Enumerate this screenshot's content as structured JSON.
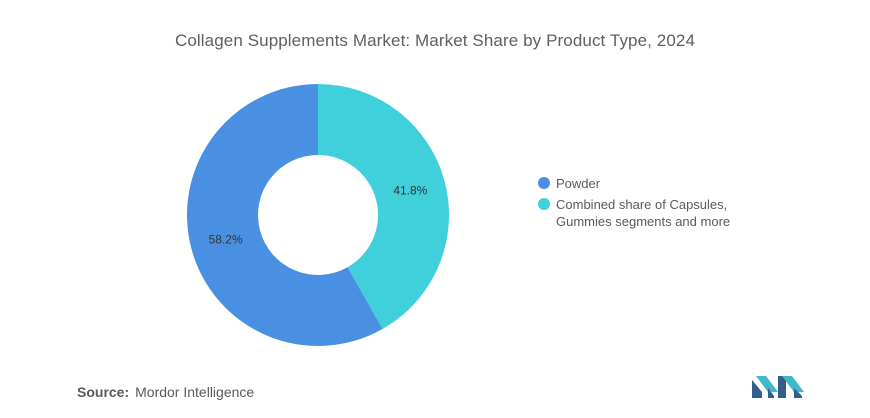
{
  "chart_data": {
    "type": "pie",
    "title": "Collagen Supplements Market: Market Share by Product Type, 2024",
    "categories": [
      "Powder",
      "Combined share of Capsules,\nGummies segments and more"
    ],
    "values": [
      58.2,
      41.8
    ],
    "data_labels": [
      "58.2%",
      "41.8%"
    ],
    "colors": [
      "#4a90e2",
      "#40d0dc"
    ],
    "donut": true,
    "legend_position": "right"
  },
  "source": {
    "label": "Source:",
    "text": "Mordor Intelligence"
  },
  "logo": {
    "icon": "mordor-intelligence-logo-icon"
  }
}
